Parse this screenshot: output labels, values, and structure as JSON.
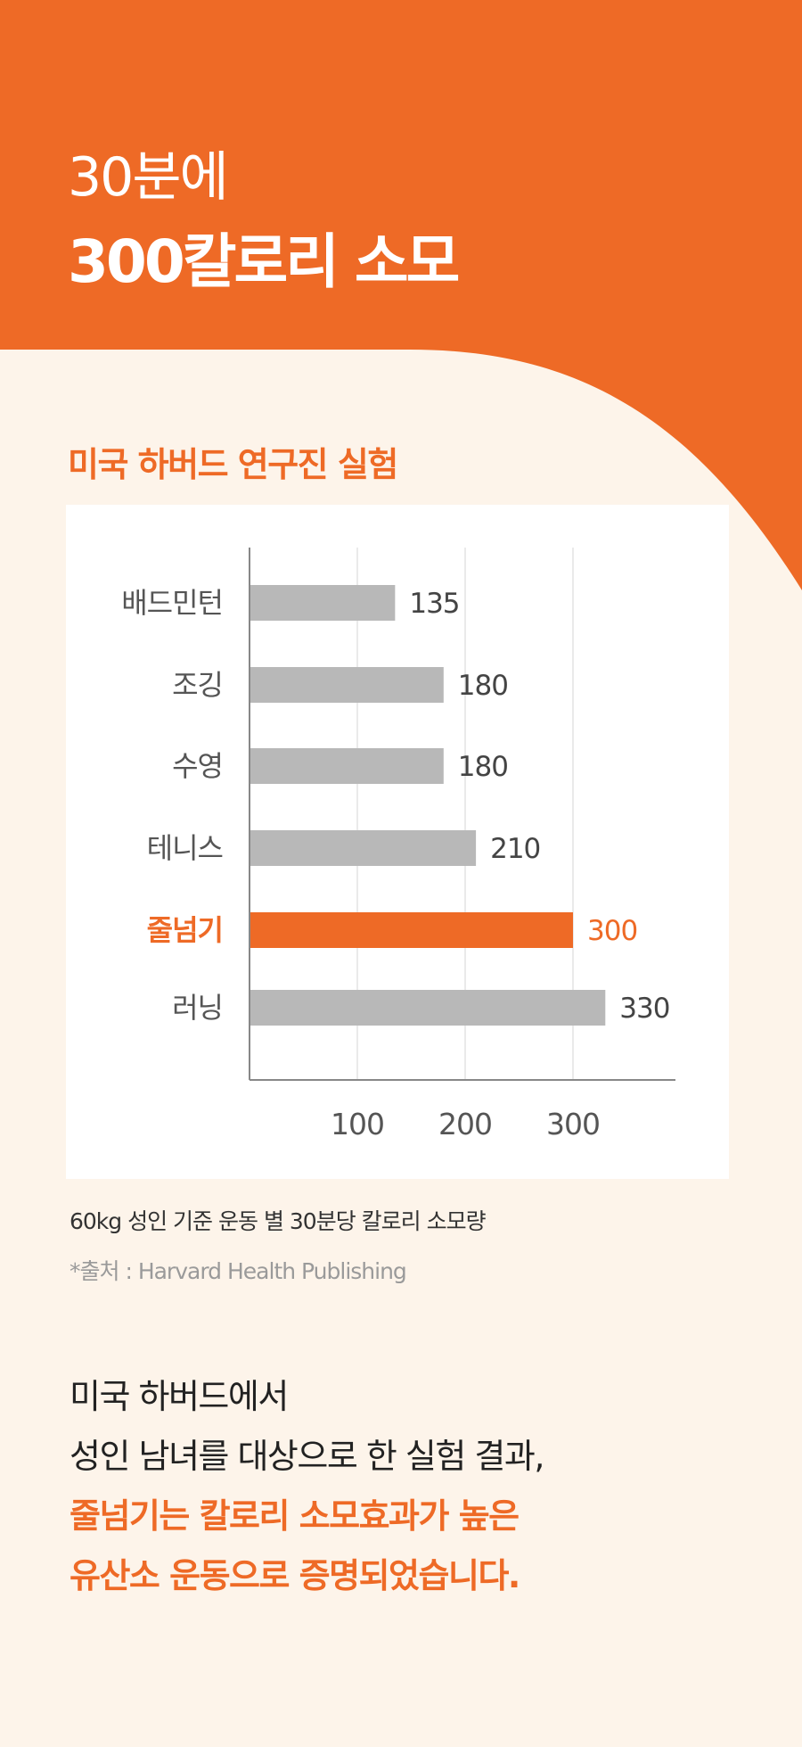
{
  "colors": {
    "accent": "#ee6a26",
    "background": "#fdf4ea",
    "bar": "#b8b8b8",
    "card": "#ffffff"
  },
  "header": {
    "title_line1": "30분에",
    "title_line2": "300칼로리 소모"
  },
  "section_title": "미국 하버드 연구진 실험",
  "chart_data": {
    "type": "bar",
    "orientation": "horizontal",
    "categories": [
      "배드민턴",
      "조깅",
      "수영",
      "테니스",
      "줄넘기",
      "러닝"
    ],
    "values": [
      135,
      180,
      180,
      210,
      300,
      330
    ],
    "highlight": "줄넘기",
    "xticks": [
      100,
      200,
      300
    ],
    "xlim": [
      0,
      400
    ],
    "grid": "vertical",
    "title": "",
    "xlabel": "",
    "ylabel": ""
  },
  "caption": "60kg 성인 기준 운동 별 30분당 칼로리 소모량",
  "source": "*출처 : Harvard Health Publishing",
  "body": {
    "line1": "미국 하버드에서",
    "line2": "성인 남녀를 대상으로 한 실험 결과,",
    "line3": "줄넘기는 칼로리 소모효과가 높은",
    "line4": "유산소 운동으로 증명되었습니다."
  }
}
